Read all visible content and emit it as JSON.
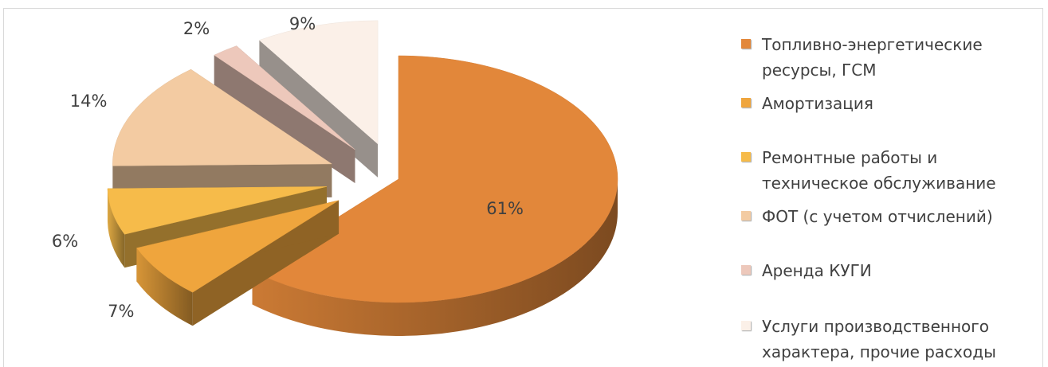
{
  "chart_data": {
    "type": "pie",
    "title": "",
    "slices": [
      {
        "label": "Топливно-энергетические ресурсы, ГСМ",
        "value": 61,
        "value_label": "61%",
        "color": "#e2873a"
      },
      {
        "label": "Амортизация",
        "value": 7,
        "value_label": "7%",
        "color": "#efa53d"
      },
      {
        "label": "Ремонтные работы и техническое обслуживание",
        "value": 6,
        "value_label": "6%",
        "color": "#f6bb4a"
      },
      {
        "label": "ФОТ (с учетом отчислений)",
        "value": 14,
        "value_label": "14%",
        "color": "#f3cba2"
      },
      {
        "label": "Аренда КУГИ",
        "value": 2,
        "value_label": "2%",
        "color": "#edc8bb"
      },
      {
        "label": "Услуги производственного характера, прочие расходы",
        "value": 9,
        "value_label": "9%",
        "color": "#fbf0e8"
      }
    ],
    "legend_position": "right",
    "exploded": true,
    "style": "3d"
  }
}
